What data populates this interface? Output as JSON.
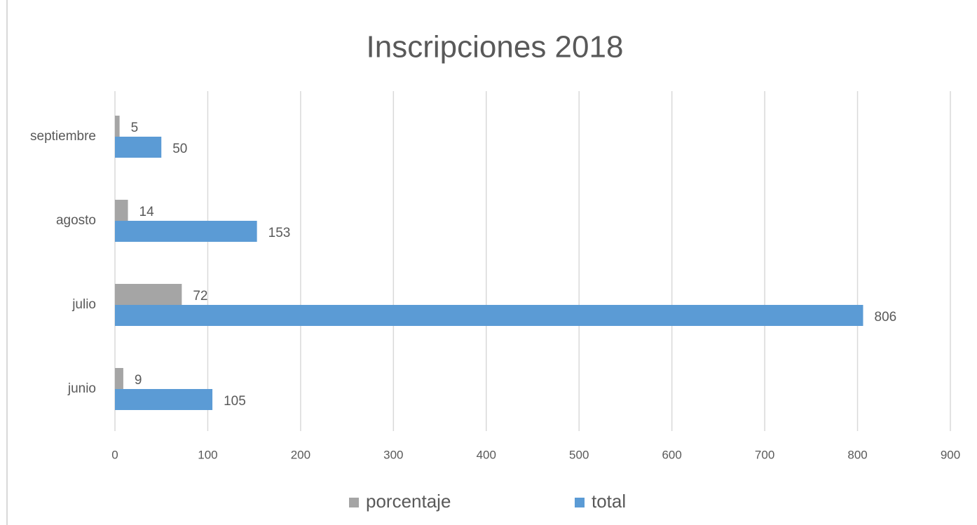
{
  "chart_data": {
    "type": "bar",
    "orientation": "horizontal",
    "title": "Inscripciones 2018",
    "categories": [
      "junio",
      "julio",
      "agosto",
      "septiembre"
    ],
    "series": [
      {
        "name": "porcentaje",
        "color": "#a5a5a5",
        "values": [
          9,
          72,
          14,
          5
        ]
      },
      {
        "name": "total",
        "color": "#5b9bd5",
        "values": [
          105,
          806,
          153,
          50
        ]
      }
    ],
    "xlim": [
      0,
      900
    ],
    "xticks": [
      0,
      100,
      200,
      300,
      400,
      500,
      600,
      700,
      800,
      900
    ],
    "grid": true,
    "legend": "bottom"
  }
}
